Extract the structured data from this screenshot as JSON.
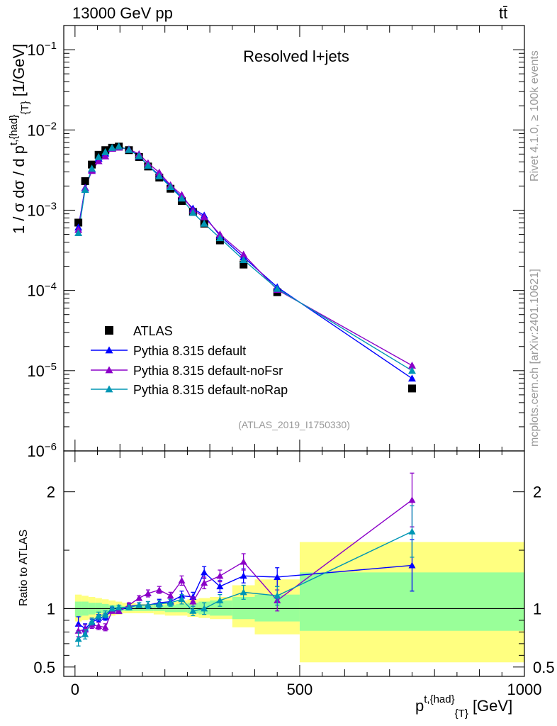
{
  "header": {
    "energy_label": "13000 GeV pp",
    "process_label": "tt̄"
  },
  "side": {
    "rivet_label": "Rivet 4.1.0, ≥ 100k events",
    "mcplots_label": "mcplots.cern.ch [arXiv:2401.10621]"
  },
  "colors": {
    "atlas": "#000000",
    "default": "#0000ff",
    "noFsr": "#8b00c8",
    "noRap": "#0096b4",
    "band_outer": "#ffff80",
    "band_inner": "#99ff99"
  },
  "chart_data": [
    {
      "type": "scatter",
      "title": "Resolved l+jets",
      "watermark": "(ATLAS_2019_I1750330)",
      "ylabel": "1 / σ dσ / d p^{t,{had}}_{T} [1/GeV]",
      "ylabel_parts": {
        "main": "1 / σ dσ / d p",
        "sup": "t,{had}",
        "sub": "{T}",
        "unit": " [1/GeV]"
      },
      "yscale": "log",
      "ylim": [
        1e-06,
        0.2
      ],
      "xlim": [
        -25,
        1000
      ],
      "yticks": [
        {
          "v": 1e-06,
          "base": "10",
          "exp": "−6"
        },
        {
          "v": 1e-05,
          "base": "10",
          "exp": "−5"
        },
        {
          "v": 0.0001,
          "base": "10",
          "exp": "−4"
        },
        {
          "v": 0.001,
          "base": "10",
          "exp": "−3"
        },
        {
          "v": 0.01,
          "base": "10",
          "exp": "−2"
        },
        {
          "v": 0.1,
          "base": "10",
          "exp": "−1"
        }
      ],
      "legend_position": "bottom-left",
      "x": [
        7.5,
        22.5,
        37.5,
        52.5,
        67.5,
        82.5,
        97.5,
        120,
        142.5,
        162.5,
        187.5,
        212.5,
        237.5,
        262.5,
        287.5,
        322.5,
        375,
        450,
        750
      ],
      "series": [
        {
          "name": "ATLAS",
          "marker": "square",
          "color_key": "atlas",
          "values": [
            0.0007,
            0.0023,
            0.0037,
            0.0049,
            0.0056,
            0.006,
            0.0062,
            0.0056,
            0.0046,
            0.0035,
            0.00255,
            0.00185,
            0.0013,
            0.00095,
            0.00068,
            0.00042,
            0.00021,
            9.5e-05,
            6e-06
          ]
        },
        {
          "name": "Pythia 8.315 default",
          "marker": "triangle",
          "color_key": "default",
          "values": [
            0.00061,
            0.0019,
            0.0032,
            0.0044,
            0.0051,
            0.0059,
            0.0061,
            0.0057,
            0.0047,
            0.0036,
            0.00275,
            0.002,
            0.00145,
            0.00105,
            0.00086,
            0.00048,
            0.00026,
            0.00011,
            8e-06
          ]
        },
        {
          "name": "Pythia 8.315 default-noFsr",
          "marker": "triangle",
          "color_key": "noFsr",
          "values": [
            0.00057,
            0.00188,
            0.0031,
            0.0041,
            0.0047,
            0.00585,
            0.00605,
            0.00575,
            0.005,
            0.00385,
            0.00295,
            0.00205,
            0.00155,
            0.001,
            0.00082,
            0.0005,
            0.00028,
            0.000102,
            1.16e-05
          ]
        },
        {
          "name": "Pythia 8.315 default-noRap",
          "marker": "triangle",
          "color_key": "noRap",
          "values": [
            0.00052,
            0.0018,
            0.0033,
            0.0046,
            0.0053,
            0.006,
            0.00625,
            0.00565,
            0.00475,
            0.0036,
            0.00265,
            0.00195,
            0.0014,
            0.00093,
            0.00068,
            0.00045,
            0.00024,
            0.000105,
            1e-05
          ]
        }
      ]
    },
    {
      "type": "scatter",
      "ylabel": "Ratio to ATLAS",
      "xlabel": "p^{t,{had}}_{T} [GeV]",
      "xlabel_parts": {
        "main": "p",
        "sup": "t,{had}",
        "sub": "{T}",
        "unit": " [GeV]"
      },
      "ylim": [
        0.42,
        2.35
      ],
      "xlim": [
        -25,
        1000
      ],
      "yticks_major": [
        0.5,
        1,
        2
      ],
      "ytick_labels": [
        "0.5",
        "1",
        "2"
      ],
      "xticks_major": [
        0,
        500,
        1000
      ],
      "xtick_labels": [
        "0",
        "500",
        "1000"
      ],
      "reference_line": 1,
      "bins": [
        [
          0,
          15
        ],
        [
          15,
          30
        ],
        [
          30,
          45
        ],
        [
          45,
          60
        ],
        [
          60,
          75
        ],
        [
          75,
          90
        ],
        [
          90,
          105
        ],
        [
          105,
          135
        ],
        [
          135,
          150
        ],
        [
          150,
          175
        ],
        [
          175,
          200
        ],
        [
          200,
          225
        ],
        [
          225,
          250
        ],
        [
          250,
          275
        ],
        [
          275,
          300
        ],
        [
          300,
          350
        ],
        [
          350,
          400
        ],
        [
          400,
          500
        ],
        [
          500,
          1000
        ]
      ],
      "band_outer": [
        [
          0.89,
          1.12
        ],
        [
          0.9,
          1.11
        ],
        [
          0.91,
          1.1
        ],
        [
          0.92,
          1.09
        ],
        [
          0.93,
          1.08
        ],
        [
          0.94,
          1.07
        ],
        [
          0.95,
          1.06
        ],
        [
          0.96,
          1.05
        ],
        [
          0.96,
          1.04
        ],
        [
          0.96,
          1.04
        ],
        [
          0.95,
          1.05
        ],
        [
          0.94,
          1.06
        ],
        [
          0.94,
          1.07
        ],
        [
          0.93,
          1.08
        ],
        [
          0.92,
          1.09
        ],
        [
          0.91,
          1.1
        ],
        [
          0.84,
          1.2
        ],
        [
          0.78,
          1.25
        ],
        [
          0.54,
          1.57
        ]
      ],
      "band_inner": [
        [
          0.93,
          1.06
        ],
        [
          0.94,
          1.06
        ],
        [
          0.95,
          1.05
        ],
        [
          0.96,
          1.05
        ],
        [
          0.96,
          1.04
        ],
        [
          0.97,
          1.03
        ],
        [
          0.97,
          1.03
        ],
        [
          0.98,
          1.02
        ],
        [
          0.98,
          1.02
        ],
        [
          0.98,
          1.02
        ],
        [
          0.98,
          1.03
        ],
        [
          0.97,
          1.03
        ],
        [
          0.97,
          1.04
        ],
        [
          0.96,
          1.05
        ],
        [
          0.95,
          1.06
        ],
        [
          0.94,
          1.07
        ],
        [
          0.91,
          1.1
        ],
        [
          0.89,
          1.12
        ],
        [
          0.81,
          1.31
        ]
      ],
      "series": [
        {
          "name": "Pythia 8.315 default",
          "color_key": "default",
          "values": [
            0.87,
            0.83,
            0.88,
            0.92,
            0.93,
            0.99,
            0.98,
            1.02,
            1.03,
            1.03,
            1.05,
            1.06,
            1.11,
            1.1,
            1.31,
            1.19,
            1.28,
            1.27,
            1.37
          ],
          "errors": [
            0.06,
            0.04,
            0.03,
            0.03,
            0.03,
            0.02,
            0.02,
            0.02,
            0.02,
            0.03,
            0.03,
            0.03,
            0.04,
            0.04,
            0.05,
            0.05,
            0.06,
            0.08,
            0.22
          ]
        },
        {
          "name": "Pythia 8.315 default-noFsr",
          "color_key": "noFsr",
          "values": [
            0.81,
            0.82,
            0.86,
            0.85,
            0.84,
            0.98,
            0.98,
            1.03,
            1.09,
            1.13,
            1.16,
            1.11,
            1.24,
            1.06,
            1.22,
            1.28,
            1.4,
            1.07,
            1.93
          ],
          "errors": [
            0.05,
            0.04,
            0.03,
            0.03,
            0.03,
            0.02,
            0.02,
            0.02,
            0.02,
            0.03,
            0.03,
            0.03,
            0.04,
            0.04,
            0.05,
            0.05,
            0.07,
            0.09,
            0.23
          ]
        },
        {
          "name": "Pythia 8.315 default-noRap",
          "color_key": "noRap",
          "values": [
            0.74,
            0.78,
            0.89,
            0.94,
            0.95,
            1.0,
            1.01,
            1.01,
            1.03,
            1.03,
            1.04,
            1.05,
            1.08,
            0.98,
            1.0,
            1.07,
            1.14,
            1.11,
            1.66
          ],
          "errors": [
            0.06,
            0.04,
            0.03,
            0.03,
            0.03,
            0.02,
            0.02,
            0.02,
            0.02,
            0.03,
            0.03,
            0.03,
            0.04,
            0.04,
            0.05,
            0.05,
            0.06,
            0.08,
            0.22
          ]
        }
      ]
    }
  ]
}
